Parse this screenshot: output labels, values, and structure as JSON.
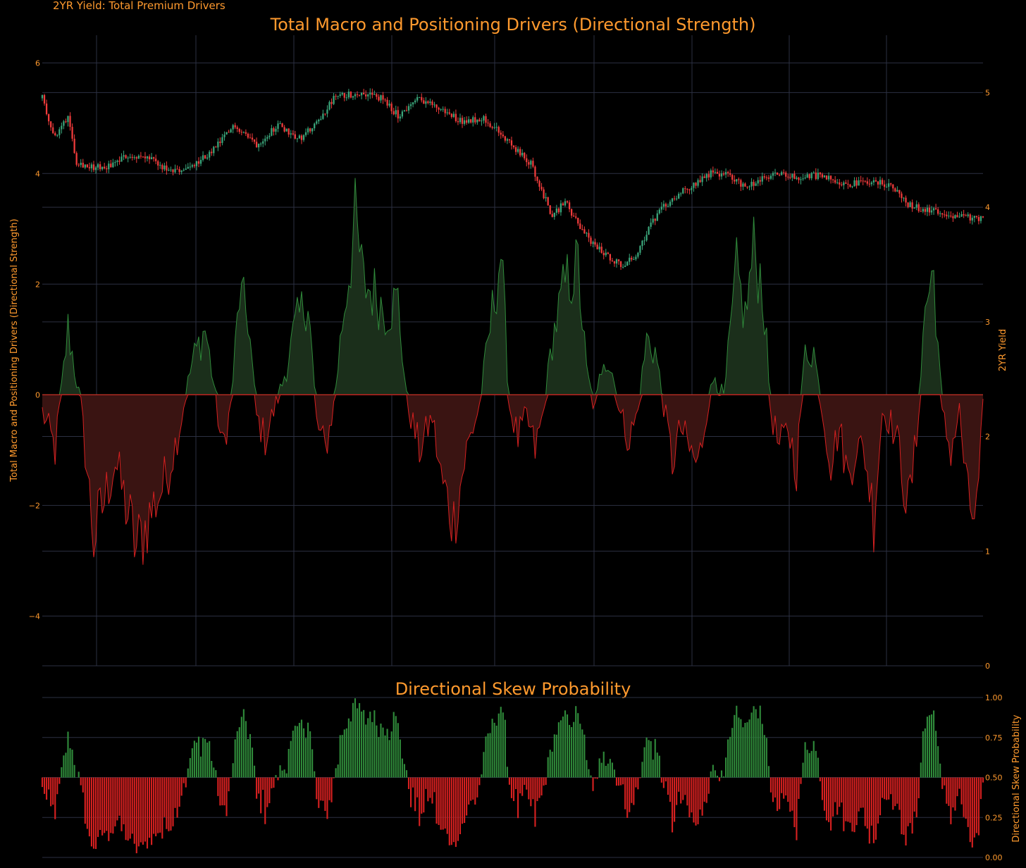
{
  "header": {
    "label": "2YR Yield: Total Premium Drivers"
  },
  "colors": {
    "background": "#000000",
    "grid": "#2c3042",
    "title": "#ff9a2e",
    "tick": "#ff9a2e",
    "up": "#2f8a3a",
    "down": "#d62020",
    "up_fill": "#1b2f1b",
    "down_fill": "#3a1412",
    "candle_up": "#3aa57a",
    "candle_down": "#ef3b3b"
  },
  "chart_data": [
    {
      "type": "area",
      "title": "Total Macro and Positioning Drivers (Directional Strength)",
      "ylabel": "Total Macro and Positioning Drivers (Directional Strength)",
      "y2label": "2YR Yield",
      "ylim": [
        -4.9,
        6.5
      ],
      "y2lim": [
        0,
        5.5
      ],
      "yticks": [
        6,
        4,
        2,
        0,
        -2,
        -4
      ],
      "ytick_labels": [
        "6",
        "4",
        "2",
        "0",
        "−2",
        "−4"
      ],
      "y2ticks": [
        5,
        4,
        3,
        2,
        1,
        0
      ],
      "y2tick_labels": [
        "5",
        "4",
        "3",
        "2",
        "1",
        "0"
      ],
      "grid": true,
      "n_points": 440,
      "series": [
        {
          "kind": "drivers",
          "anchors": [
            [
              0,
              -0.3
            ],
            [
              6,
              -1.0
            ],
            [
              12,
              1.2
            ],
            [
              18,
              -0.2
            ],
            [
              24,
              -2.6
            ],
            [
              34,
              -1.2
            ],
            [
              44,
              -2.8
            ],
            [
              52,
              -2.0
            ],
            [
              58,
              -1.5
            ],
            [
              64,
              -0.6
            ],
            [
              70,
              0.6
            ],
            [
              76,
              1.2
            ],
            [
              80,
              0.2
            ],
            [
              84,
              -1.0
            ],
            [
              88,
              -0.2
            ],
            [
              92,
              1.8
            ],
            [
              96,
              1.4
            ],
            [
              100,
              -0.4
            ],
            [
              104,
              -0.8
            ],
            [
              108,
              -0.3
            ],
            [
              112,
              0.2
            ],
            [
              118,
              1.2
            ],
            [
              124,
              1.8
            ],
            [
              128,
              -0.5
            ],
            [
              132,
              -1.0
            ],
            [
              136,
              -0.2
            ],
            [
              140,
              1.3
            ],
            [
              146,
              3.1
            ],
            [
              150,
              2.0
            ],
            [
              156,
              1.8
            ],
            [
              160,
              1.5
            ],
            [
              166,
              1.7
            ],
            [
              170,
              -0.1
            ],
            [
              176,
              -1.0
            ],
            [
              182,
              -0.4
            ],
            [
              186,
              -1.5
            ],
            [
              192,
              -2.3
            ],
            [
              198,
              -1.0
            ],
            [
              204,
              -0.2
            ],
            [
              210,
              1.5
            ],
            [
              214,
              2.6
            ],
            [
              218,
              -0.2
            ],
            [
              222,
              -0.8
            ],
            [
              226,
              -0.4
            ],
            [
              230,
              -1.0
            ],
            [
              234,
              -0.3
            ],
            [
              238,
              1.0
            ],
            [
              244,
              2.0
            ],
            [
              250,
              2.3
            ],
            [
              254,
              0.4
            ],
            [
              258,
              -0.3
            ],
            [
              262,
              0.8
            ],
            [
              266,
              0.4
            ],
            [
              270,
              -0.4
            ],
            [
              274,
              -0.8
            ],
            [
              278,
              -0.3
            ],
            [
              282,
              1.0
            ],
            [
              286,
              0.8
            ],
            [
              290,
              -0.2
            ],
            [
              294,
              -1.2
            ],
            [
              298,
              -0.6
            ],
            [
              302,
              -1.0
            ],
            [
              306,
              -1.3
            ],
            [
              310,
              -0.3
            ],
            [
              314,
              0.4
            ],
            [
              318,
              -0.1
            ],
            [
              324,
              2.2
            ],
            [
              328,
              1.4
            ],
            [
              332,
              2.6
            ],
            [
              336,
              2.0
            ],
            [
              340,
              -0.3
            ],
            [
              344,
              -1.0
            ],
            [
              348,
              -0.6
            ],
            [
              352,
              -1.3
            ],
            [
              356,
              0.8
            ],
            [
              360,
              0.8
            ],
            [
              364,
              -0.3
            ],
            [
              368,
              -1.2
            ],
            [
              372,
              -0.6
            ],
            [
              376,
              -1.5
            ],
            [
              380,
              -0.9
            ],
            [
              384,
              -1.1
            ],
            [
              388,
              -2.2
            ],
            [
              392,
              -0.3
            ],
            [
              396,
              -0.5
            ],
            [
              400,
              -1.0
            ],
            [
              404,
              -2.1
            ],
            [
              408,
              -0.8
            ],
            [
              412,
              1.6
            ],
            [
              416,
              2.2
            ],
            [
              420,
              -0.4
            ],
            [
              424,
              -1.0
            ],
            [
              428,
              -0.3
            ],
            [
              432,
              -2.0
            ],
            [
              436,
              -2.2
            ],
            [
              439,
              -0.3
            ]
          ]
        },
        {
          "kind": "yield_candles",
          "anchors": [
            [
              0,
              4.95
            ],
            [
              6,
              4.6
            ],
            [
              12,
              4.8
            ],
            [
              16,
              4.4
            ],
            [
              22,
              4.35
            ],
            [
              30,
              4.35
            ],
            [
              40,
              4.45
            ],
            [
              50,
              4.42
            ],
            [
              60,
              4.3
            ],
            [
              70,
              4.35
            ],
            [
              80,
              4.5
            ],
            [
              90,
              4.72
            ],
            [
              100,
              4.55
            ],
            [
              110,
              4.72
            ],
            [
              120,
              4.6
            ],
            [
              128,
              4.72
            ],
            [
              136,
              4.95
            ],
            [
              142,
              4.98
            ],
            [
              150,
              5.0
            ],
            [
              158,
              4.95
            ],
            [
              166,
              4.8
            ],
            [
              176,
              4.95
            ],
            [
              186,
              4.85
            ],
            [
              196,
              4.75
            ],
            [
              206,
              4.78
            ],
            [
              216,
              4.6
            ],
            [
              222,
              4.48
            ],
            [
              228,
              4.38
            ],
            [
              232,
              4.2
            ],
            [
              238,
              3.92
            ],
            [
              244,
              4.05
            ],
            [
              250,
              3.85
            ],
            [
              256,
              3.7
            ],
            [
              262,
              3.6
            ],
            [
              270,
              3.5
            ],
            [
              276,
              3.55
            ],
            [
              284,
              3.85
            ],
            [
              290,
              4.0
            ],
            [
              296,
              4.1
            ],
            [
              304,
              4.2
            ],
            [
              312,
              4.3
            ],
            [
              320,
              4.28
            ],
            [
              328,
              4.18
            ],
            [
              336,
              4.24
            ],
            [
              344,
              4.3
            ],
            [
              352,
              4.25
            ],
            [
              360,
              4.28
            ],
            [
              368,
              4.25
            ],
            [
              376,
              4.2
            ],
            [
              386,
              4.22
            ],
            [
              396,
              4.2
            ],
            [
              404,
              4.02
            ],
            [
              412,
              3.98
            ],
            [
              420,
              3.95
            ],
            [
              428,
              3.92
            ],
            [
              436,
              3.9
            ],
            [
              439,
              3.92
            ]
          ]
        }
      ]
    },
    {
      "type": "bar",
      "title": "Directional Skew Probability",
      "ylabel": "Directional Skew Probability",
      "ylim": [
        0,
        1
      ],
      "baseline": 0.5,
      "yticks": [
        1.0,
        0.75,
        0.5,
        0.25,
        0.0
      ],
      "ytick_labels": [
        "1.00",
        "0.75",
        "0.50",
        "0.25",
        "0.00"
      ],
      "grid": true,
      "n_points": 440
    }
  ]
}
